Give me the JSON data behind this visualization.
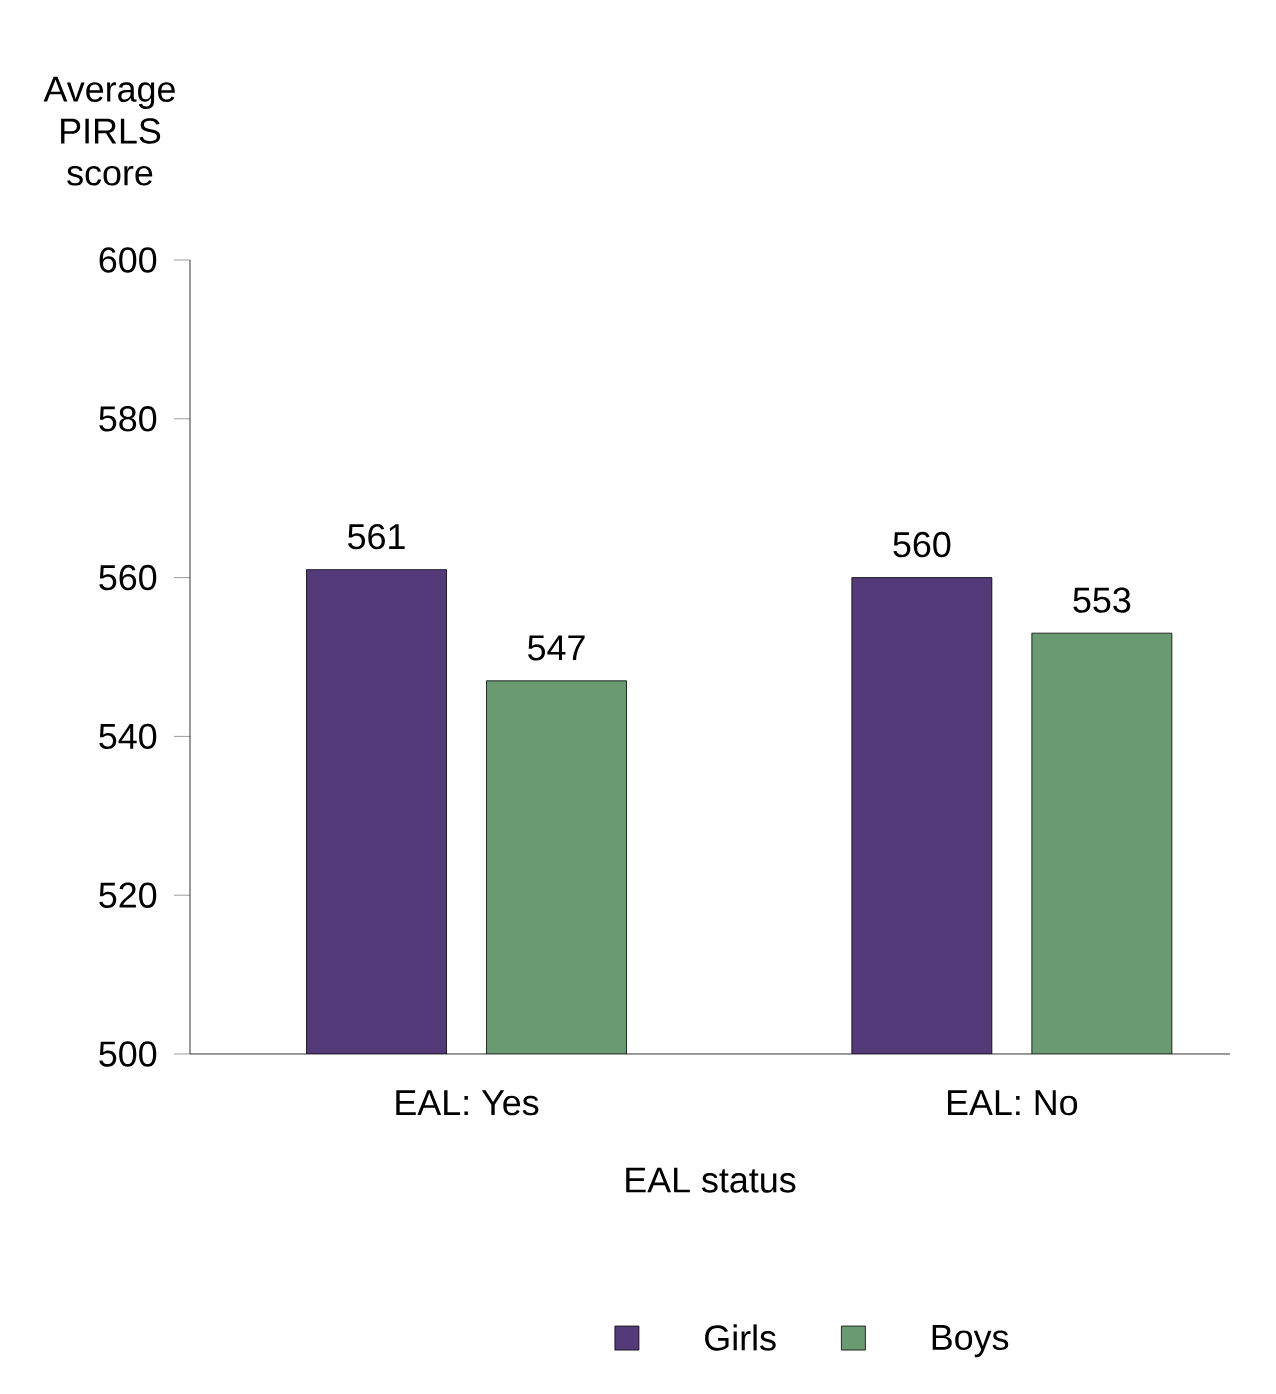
{
  "chart_data": {
    "type": "bar",
    "xlabel": "EAL status",
    "ylabel": "Average PIRLS score",
    "categories": [
      "EAL: Yes",
      "EAL: No"
    ],
    "series": [
      {
        "name": "Girls",
        "color": "#553a7a",
        "values": [
          561,
          560
        ]
      },
      {
        "name": "Boys",
        "color": "#6a9a72",
        "values": [
          547,
          553
        ]
      }
    ],
    "ylim": [
      500,
      600
    ],
    "yticks": [
      500,
      520,
      540,
      560,
      580,
      600
    ],
    "data_labels": true,
    "legend": "bottom",
    "grid": false
  }
}
